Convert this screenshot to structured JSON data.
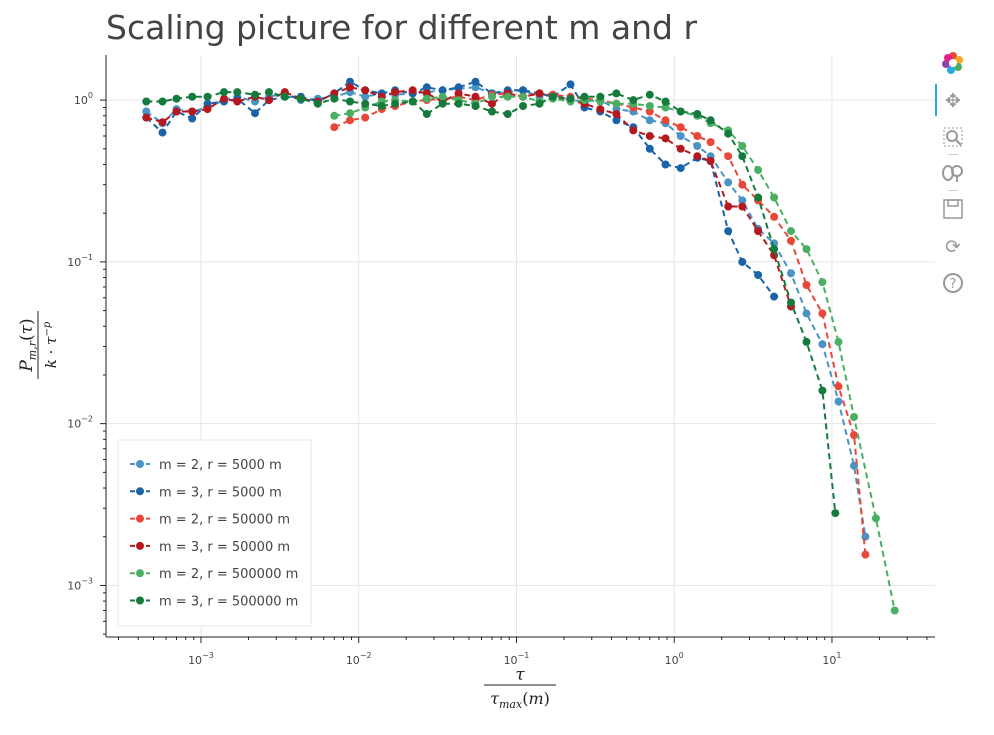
{
  "title": "Scaling picture for different m and r",
  "toolbar": {
    "tools": [
      "bokeh-logo-icon",
      "pan-icon",
      "box-zoom-icon",
      "wheel-zoom-icon",
      "save-icon",
      "reset-icon",
      "help-icon"
    ],
    "active_color": "#26aae1"
  },
  "chart_data": {
    "type": "line",
    "title": "Scaling picture for different m and r",
    "xlabel": "τ / τ_max(m)",
    "ylabel": "P_{m,r}(τ) / k · τ^{-p}",
    "x_scale": "log",
    "y_scale": "log",
    "xlim": [
      0.00025,
      45
    ],
    "ylim": [
      0.00048,
      1.9
    ],
    "grid": true,
    "legend_position": "bottom-left",
    "line_style": "dashed with circle markers",
    "x_ticks": [
      {
        "base": "10",
        "exp": "−3",
        "value": 0.001
      },
      {
        "base": "10",
        "exp": "−2",
        "value": 0.01
      },
      {
        "base": "10",
        "exp": "−1",
        "value": 0.1
      },
      {
        "base": "10",
        "exp": "0",
        "value": 1
      },
      {
        "base": "10",
        "exp": "1",
        "value": 10
      }
    ],
    "y_ticks": [
      {
        "base": "10",
        "exp": "0",
        "value": 1
      },
      {
        "base": "10",
        "exp": "−1",
        "value": 0.1
      },
      {
        "base": "10",
        "exp": "−2",
        "value": 0.01
      },
      {
        "base": "10",
        "exp": "−3",
        "value": 0.001
      }
    ],
    "series": [
      {
        "name": "m = 2, r = 5000 m",
        "color": "#4a93c6",
        "points": [
          [
            0.00045,
            0.85
          ],
          [
            0.00057,
            0.72
          ],
          [
            0.0007,
            0.88
          ],
          [
            0.00088,
            0.85
          ],
          [
            0.0011,
            0.9
          ],
          [
            0.0014,
            1.0
          ],
          [
            0.0017,
            1.05
          ],
          [
            0.0022,
            0.98
          ],
          [
            0.0027,
            1.05
          ],
          [
            0.0034,
            1.1
          ],
          [
            0.0043,
            1.0
          ],
          [
            0.0055,
            1.02
          ],
          [
            0.007,
            1.05
          ],
          [
            0.0088,
            1.12
          ],
          [
            0.011,
            1.05
          ],
          [
            0.014,
            1.1
          ],
          [
            0.017,
            1.08
          ],
          [
            0.022,
            1.1
          ],
          [
            0.027,
            1.12
          ],
          [
            0.034,
            1.15
          ],
          [
            0.043,
            1.18
          ],
          [
            0.055,
            1.2
          ],
          [
            0.07,
            1.1
          ],
          [
            0.088,
            1.12
          ],
          [
            0.11,
            1.15
          ],
          [
            0.14,
            1.05
          ],
          [
            0.17,
            1.08
          ],
          [
            0.22,
            1.0
          ],
          [
            0.27,
            0.98
          ],
          [
            0.34,
            1.0
          ],
          [
            0.43,
            0.88
          ],
          [
            0.55,
            0.85
          ],
          [
            0.7,
            0.75
          ],
          [
            0.88,
            0.72
          ],
          [
            1.1,
            0.6
          ],
          [
            1.4,
            0.52
          ],
          [
            1.7,
            0.45
          ],
          [
            2.2,
            0.31
          ],
          [
            2.7,
            0.24
          ],
          [
            3.4,
            0.16
          ],
          [
            4.3,
            0.13
          ],
          [
            5.5,
            0.085
          ],
          [
            6.9,
            0.048
          ],
          [
            8.7,
            0.031
          ],
          [
            11.0,
            0.0137
          ],
          [
            13.8,
            0.0055
          ],
          [
            16.3,
            0.002
          ]
        ]
      },
      {
        "name": "m = 3, r = 5000 m",
        "color": "#1a63a8",
        "points": [
          [
            0.00045,
            0.78
          ],
          [
            0.00057,
            0.63
          ],
          [
            0.0007,
            0.85
          ],
          [
            0.00088,
            0.77
          ],
          [
            0.0011,
            0.95
          ],
          [
            0.0014,
            0.98
          ],
          [
            0.0017,
            1.02
          ],
          [
            0.0022,
            0.83
          ],
          [
            0.0027,
            1.0
          ],
          [
            0.0034,
            1.05
          ],
          [
            0.0043,
            1.05
          ],
          [
            0.0055,
            0.98
          ],
          [
            0.007,
            1.1
          ],
          [
            0.0088,
            1.3
          ],
          [
            0.011,
            1.15
          ],
          [
            0.014,
            1.1
          ],
          [
            0.017,
            1.15
          ],
          [
            0.022,
            1.1
          ],
          [
            0.027,
            1.2
          ],
          [
            0.034,
            1.15
          ],
          [
            0.043,
            1.2
          ],
          [
            0.055,
            1.3
          ],
          [
            0.07,
            1.1
          ],
          [
            0.088,
            1.15
          ],
          [
            0.11,
            1.15
          ],
          [
            0.14,
            1.1
          ],
          [
            0.17,
            1.05
          ],
          [
            0.22,
            1.25
          ],
          [
            0.27,
            0.9
          ],
          [
            0.34,
            0.85
          ],
          [
            0.43,
            0.75
          ],
          [
            0.55,
            0.68
          ],
          [
            0.7,
            0.5
          ],
          [
            0.88,
            0.4
          ],
          [
            1.1,
            0.38
          ],
          [
            1.4,
            0.44
          ],
          [
            1.7,
            0.42
          ],
          [
            2.2,
            0.155
          ],
          [
            2.7,
            0.1
          ],
          [
            3.4,
            0.083
          ],
          [
            4.3,
            0.061
          ]
        ]
      },
      {
        "name": "m = 2, r = 50000 m",
        "color": "#e8473a",
        "points": [
          [
            0.007,
            0.68
          ],
          [
            0.0088,
            0.75
          ],
          [
            0.011,
            0.78
          ],
          [
            0.014,
            0.88
          ],
          [
            0.017,
            0.92
          ],
          [
            0.022,
            0.98
          ],
          [
            0.027,
            1.0
          ],
          [
            0.034,
            1.02
          ],
          [
            0.043,
            1.05
          ],
          [
            0.055,
            1.0
          ],
          [
            0.07,
            1.08
          ],
          [
            0.088,
            1.1
          ],
          [
            0.11,
            1.05
          ],
          [
            0.14,
            1.1
          ],
          [
            0.17,
            1.08
          ],
          [
            0.22,
            1.05
          ],
          [
            0.27,
            1.02
          ],
          [
            0.34,
            1.0
          ],
          [
            0.43,
            0.95
          ],
          [
            0.55,
            0.9
          ],
          [
            0.7,
            0.85
          ],
          [
            0.88,
            0.75
          ],
          [
            1.1,
            0.68
          ],
          [
            1.4,
            0.6
          ],
          [
            1.7,
            0.55
          ],
          [
            2.2,
            0.45
          ],
          [
            2.7,
            0.3
          ],
          [
            3.4,
            0.24
          ],
          [
            4.3,
            0.19
          ],
          [
            5.5,
            0.135
          ],
          [
            6.9,
            0.072
          ],
          [
            8.7,
            0.048
          ],
          [
            11.0,
            0.017
          ],
          [
            13.8,
            0.0085
          ],
          [
            16.3,
            0.00155
          ]
        ]
      },
      {
        "name": "m = 3, r = 50000 m",
        "color": "#b4191f",
        "points": [
          [
            0.00045,
            0.78
          ],
          [
            0.00057,
            0.73
          ],
          [
            0.0007,
            0.85
          ],
          [
            0.00088,
            0.85
          ],
          [
            0.0011,
            0.88
          ],
          [
            0.0014,
            1.02
          ],
          [
            0.0017,
            0.98
          ],
          [
            0.0022,
            1.05
          ],
          [
            0.0027,
            1.0
          ],
          [
            0.0034,
            1.12
          ],
          [
            0.0043,
            1.02
          ],
          [
            0.0055,
            0.98
          ],
          [
            0.007,
            1.1
          ],
          [
            0.0088,
            1.2
          ],
          [
            0.011,
            1.15
          ],
          [
            0.014,
            1.05
          ],
          [
            0.017,
            1.12
          ],
          [
            0.022,
            1.15
          ],
          [
            0.027,
            1.1
          ],
          [
            0.034,
            0.98
          ],
          [
            0.043,
            1.1
          ],
          [
            0.055,
            1.05
          ],
          [
            0.07,
            0.95
          ],
          [
            0.088,
            1.1
          ],
          [
            0.11,
            1.05
          ],
          [
            0.14,
            1.1
          ],
          [
            0.17,
            1.05
          ],
          [
            0.22,
            1.0
          ],
          [
            0.27,
            0.95
          ],
          [
            0.34,
            0.88
          ],
          [
            0.43,
            0.82
          ],
          [
            0.55,
            0.65
          ],
          [
            0.7,
            0.6
          ],
          [
            0.88,
            0.58
          ],
          [
            1.1,
            0.5
          ],
          [
            1.4,
            0.45
          ],
          [
            1.7,
            0.42
          ],
          [
            2.2,
            0.22
          ],
          [
            2.7,
            0.22
          ],
          [
            3.4,
            0.155
          ],
          [
            4.3,
            0.11
          ],
          [
            5.5,
            0.053
          ]
        ]
      },
      {
        "name": "m = 2, r = 500000 m",
        "color": "#4aaf63",
        "points": [
          [
            0.007,
            0.8
          ],
          [
            0.0088,
            0.83
          ],
          [
            0.011,
            0.9
          ],
          [
            0.014,
            0.98
          ],
          [
            0.017,
            1.0
          ],
          [
            0.022,
            0.98
          ],
          [
            0.027,
            1.02
          ],
          [
            0.034,
            1.05
          ],
          [
            0.043,
            1.0
          ],
          [
            0.055,
            0.95
          ],
          [
            0.07,
            1.05
          ],
          [
            0.088,
            1.05
          ],
          [
            0.11,
            1.05
          ],
          [
            0.14,
            0.98
          ],
          [
            0.17,
            1.02
          ],
          [
            0.22,
            0.98
          ],
          [
            0.27,
            1.0
          ],
          [
            0.34,
            0.98
          ],
          [
            0.43,
            0.95
          ],
          [
            0.55,
            0.95
          ],
          [
            0.7,
            0.92
          ],
          [
            0.88,
            0.9
          ],
          [
            1.1,
            0.85
          ],
          [
            1.4,
            0.8
          ],
          [
            1.7,
            0.72
          ],
          [
            2.2,
            0.65
          ],
          [
            2.7,
            0.52
          ],
          [
            3.4,
            0.37
          ],
          [
            4.3,
            0.25
          ],
          [
            5.5,
            0.155
          ],
          [
            6.9,
            0.12
          ],
          [
            8.7,
            0.075
          ],
          [
            11.0,
            0.032
          ],
          [
            13.8,
            0.011
          ],
          [
            19.0,
            0.0026
          ],
          [
            25.0,
            0.0007
          ]
        ]
      },
      {
        "name": "m = 3, r = 500000 m",
        "color": "#157b3c",
        "points": [
          [
            0.00045,
            0.98
          ],
          [
            0.00057,
            0.98
          ],
          [
            0.0007,
            1.02
          ],
          [
            0.00088,
            1.05
          ],
          [
            0.0011,
            1.05
          ],
          [
            0.0014,
            1.12
          ],
          [
            0.0017,
            1.12
          ],
          [
            0.0022,
            1.08
          ],
          [
            0.0027,
            1.12
          ],
          [
            0.0034,
            1.05
          ],
          [
            0.0043,
            1.02
          ],
          [
            0.0055,
            0.95
          ],
          [
            0.007,
            1.02
          ],
          [
            0.0088,
            0.98
          ],
          [
            0.011,
            0.95
          ],
          [
            0.014,
            0.92
          ],
          [
            0.017,
            0.95
          ],
          [
            0.022,
            0.98
          ],
          [
            0.027,
            0.82
          ],
          [
            0.034,
            0.95
          ],
          [
            0.043,
            0.95
          ],
          [
            0.055,
            0.92
          ],
          [
            0.07,
            0.85
          ],
          [
            0.088,
            0.82
          ],
          [
            0.11,
            0.92
          ],
          [
            0.14,
            0.95
          ],
          [
            0.17,
            1.05
          ],
          [
            0.22,
            1.02
          ],
          [
            0.27,
            1.05
          ],
          [
            0.34,
            1.05
          ],
          [
            0.43,
            1.1
          ],
          [
            0.55,
            1.0
          ],
          [
            0.7,
            1.08
          ],
          [
            0.88,
            0.98
          ],
          [
            1.1,
            0.85
          ],
          [
            1.4,
            0.82
          ],
          [
            1.7,
            0.75
          ],
          [
            2.2,
            0.62
          ],
          [
            2.7,
            0.45
          ],
          [
            3.4,
            0.25
          ],
          [
            4.3,
            0.12
          ],
          [
            5.5,
            0.056
          ],
          [
            6.9,
            0.032
          ],
          [
            8.7,
            0.016
          ],
          [
            10.5,
            0.0028
          ]
        ]
      }
    ]
  }
}
